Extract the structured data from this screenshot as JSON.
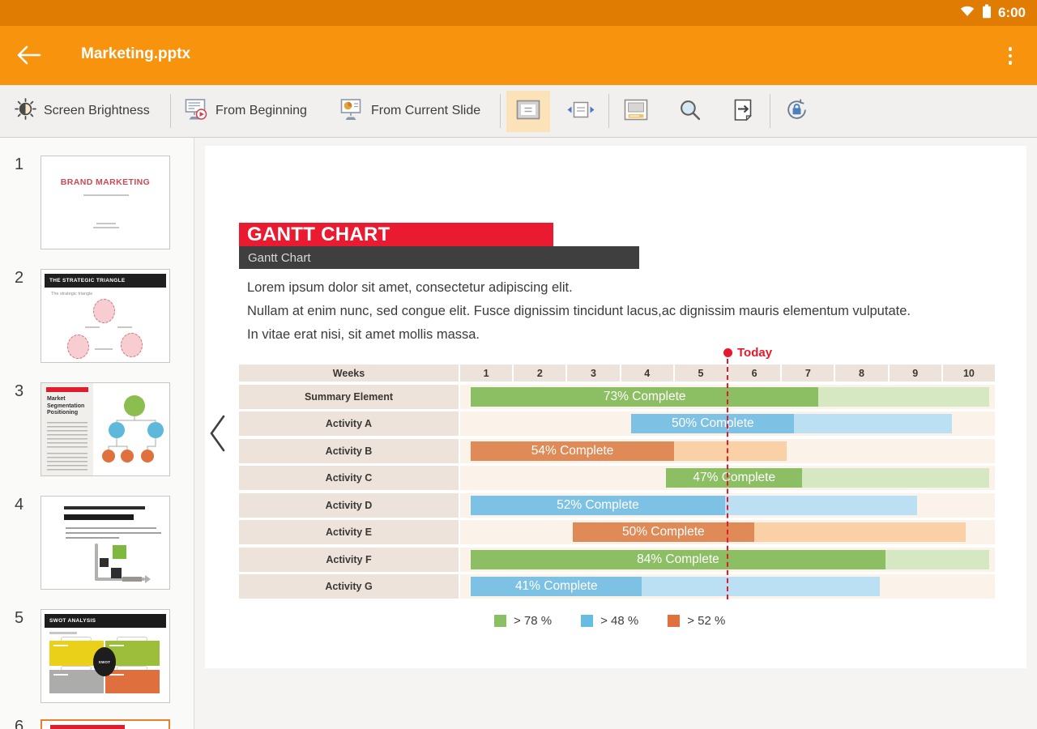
{
  "status_bar": {
    "time": "6:00"
  },
  "app_bar": {
    "title": "Marketing.pptx"
  },
  "toolbar": {
    "brightness_label": "Screen Brightness",
    "from_beginning_label": "From Beginning",
    "from_current_label": "From Current Slide"
  },
  "sidebar": {
    "slides": [
      {
        "number": "1",
        "title": "BRAND MARKETING"
      },
      {
        "number": "2",
        "title": "THE STRATEGIC TRIANGLE",
        "caption": "The strategic triangle"
      },
      {
        "number": "3",
        "title": "Market Segmentation Positioning"
      },
      {
        "number": "4",
        "title": ""
      },
      {
        "number": "5",
        "title": "SWOT ANALYSIS",
        "badge": "SWOT"
      },
      {
        "number": "6",
        "title": ""
      }
    ]
  },
  "slide": {
    "title": "GANTT CHART",
    "subtitle": "Gantt Chart",
    "body_lines": [
      "Lorem ipsum dolor sit amet, consectetur adipiscing elit.",
      "Nullam at enim nunc, sed congue elit. Fusce dignissim tincidunt lacus,ac dignissim mauris elementum vulputate.",
      "In vitae erat nisi, sit amet mollis massa."
    ],
    "today_label": "Today"
  },
  "chart_data": {
    "type": "gantt",
    "title": "GANTT CHART",
    "x_axis_label": "Weeks",
    "weeks": [
      "1",
      "2",
      "3",
      "4",
      "5",
      "6",
      "7",
      "8",
      "9",
      "10"
    ],
    "x_range": [
      0,
      10
    ],
    "today_week": 5,
    "today_color": "#E6192C",
    "rows": [
      {
        "label": "Summary Element",
        "series": "green",
        "start_week": 0.2,
        "progress_week": 6.7,
        "end_week": 9.9,
        "percent_complete": 73,
        "bar_label": "73% Complete"
      },
      {
        "label": "Activity A",
        "series": "blue",
        "start_week": 3.2,
        "progress_week": 6.25,
        "end_week": 9.2,
        "percent_complete": 50,
        "bar_label": "50% Complete"
      },
      {
        "label": "Activity B",
        "series": "orange",
        "start_week": 0.2,
        "progress_week": 4.0,
        "end_week": 6.1,
        "percent_complete": 54,
        "bar_label": "54% Complete"
      },
      {
        "label": "Activity C",
        "series": "green",
        "start_week": 3.85,
        "progress_week": 6.4,
        "end_week": 9.9,
        "percent_complete": 47,
        "bar_label": "47% Complete"
      },
      {
        "label": "Activity D",
        "series": "blue",
        "start_week": 0.2,
        "progress_week": 4.95,
        "end_week": 8.55,
        "percent_complete": 52,
        "bar_label": "52% Complete"
      },
      {
        "label": "Activity E",
        "series": "orange",
        "start_week": 2.1,
        "progress_week": 5.5,
        "end_week": 9.45,
        "percent_complete": 50,
        "bar_label": "50% Complete"
      },
      {
        "label": "Activity F",
        "series": "green",
        "start_week": 0.2,
        "progress_week": 7.95,
        "end_week": 9.9,
        "percent_complete": 84,
        "bar_label": "84% Complete"
      },
      {
        "label": "Activity G",
        "series": "blue",
        "start_week": 0.2,
        "progress_week": 3.4,
        "end_week": 7.85,
        "percent_complete": 41,
        "bar_label": "41% Complete"
      }
    ],
    "colors": {
      "green": {
        "dark": "#8CBE63",
        "light": "#D6E8C2"
      },
      "blue": {
        "dark": "#7DC1E4",
        "light": "#BBE0F3"
      },
      "orange": {
        "dark": "#DF8A57",
        "light": "#FAD0A7"
      }
    },
    "legend": [
      {
        "label": "> 78 %",
        "color": "#8CBE63"
      },
      {
        "label": "> 48 %",
        "color": "#67BCE2"
      },
      {
        "label": "> 52 %",
        "color": "#E2703C"
      }
    ]
  }
}
